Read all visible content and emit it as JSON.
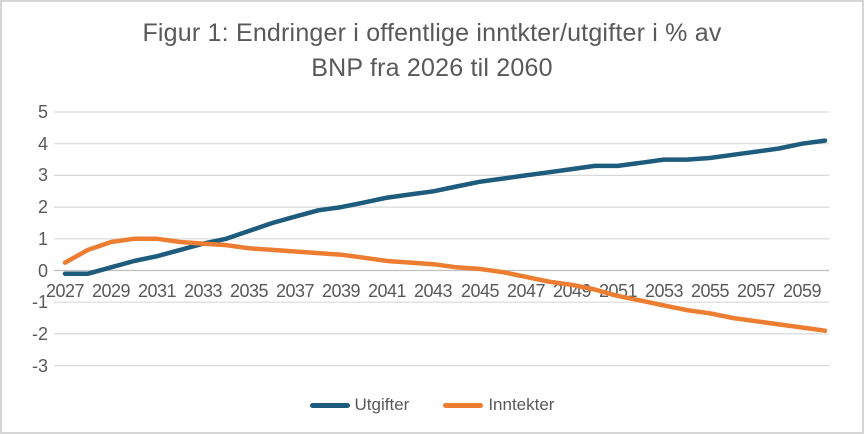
{
  "frame": {
    "background": "#FFFFFF",
    "border_color": "#D6D6D6"
  },
  "chart_data": {
    "type": "line",
    "title": "Figur 1: Endringer i offentlige inntkter/utgifter i % av BNP fra 2026 til 2060",
    "title_lines": [
      "Figur 1: Endringer i offentlige inntkter/utgifter i % av",
      "BNP fra 2026 til 2060"
    ],
    "x": [
      2027,
      2028,
      2029,
      2030,
      2031,
      2032,
      2033,
      2034,
      2035,
      2036,
      2037,
      2038,
      2039,
      2040,
      2041,
      2042,
      2043,
      2044,
      2045,
      2046,
      2047,
      2048,
      2049,
      2050,
      2051,
      2052,
      2053,
      2054,
      2055,
      2056,
      2057,
      2058,
      2059,
      2060
    ],
    "series": [
      {
        "name": "Utgifter",
        "color": "#1E5C7D",
        "values": [
          -0.1,
          -0.1,
          0.1,
          0.3,
          0.45,
          0.65,
          0.85,
          1.0,
          1.25,
          1.5,
          1.7,
          1.9,
          2.0,
          2.15,
          2.3,
          2.4,
          2.5,
          2.65,
          2.8,
          2.9,
          3.0,
          3.1,
          3.2,
          3.3,
          3.3,
          3.4,
          3.5,
          3.5,
          3.55,
          3.65,
          3.75,
          3.85,
          4.0,
          4.1
        ]
      },
      {
        "name": "Inntekter",
        "color": "#ED7D31",
        "values": [
          0.25,
          0.65,
          0.9,
          1.0,
          1.0,
          0.9,
          0.85,
          0.8,
          0.7,
          0.65,
          0.6,
          0.55,
          0.5,
          0.4,
          0.3,
          0.25,
          0.2,
          0.1,
          0.05,
          -0.05,
          -0.2,
          -0.35,
          -0.45,
          -0.6,
          -0.8,
          -0.95,
          -1.1,
          -1.25,
          -1.35,
          -1.5,
          -1.6,
          -1.7,
          -1.8,
          -1.9
        ]
      }
    ],
    "xtick_labels": [
      "2027",
      "2029",
      "2031",
      "2033",
      "2035",
      "2037",
      "2039",
      "2041",
      "2043",
      "2045",
      "2047",
      "2049",
      "2051",
      "2053",
      "2055",
      "2057",
      "2059"
    ],
    "yticks": [
      5,
      4,
      3,
      2,
      1,
      0,
      -1,
      -2,
      -3
    ],
    "ylim": [
      -3,
      5
    ],
    "grid": true,
    "legend_position": "bottom",
    "grid_color": "#D9D9D9",
    "axis_color": "#C0C0C0",
    "text_color": "#595959"
  }
}
